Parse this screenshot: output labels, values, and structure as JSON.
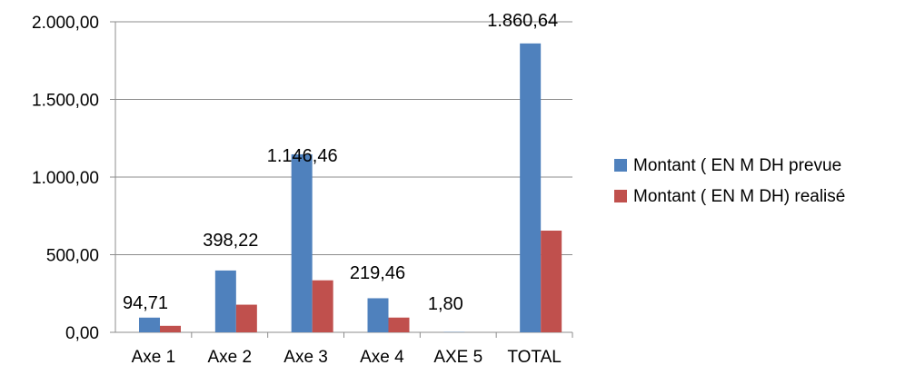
{
  "chart_data": {
    "type": "bar",
    "title": "",
    "xlabel": "",
    "ylabel": "",
    "categories": [
      "Axe 1",
      "Axe 2",
      "Axe 3",
      "Axe 4",
      "AXE 5",
      "TOTAL"
    ],
    "series": [
      {
        "name": "Montant ( EN M DH prevue",
        "color": "#4f81bd",
        "values": [
          94.71,
          398.22,
          1146.46,
          219.46,
          1.8,
          1860.64
        ]
      },
      {
        "name": "Montant ( EN M DH) realisé",
        "color": "#c0504d",
        "values": [
          42,
          178,
          335,
          95,
          0,
          655
        ]
      }
    ],
    "data_labels": [
      "94,71",
      "398,22",
      "1.146,46",
      "219,46",
      "1,80",
      "1.860,64"
    ],
    "y_ticks": [
      "0,00",
      "500,00",
      "1.000,00",
      "1.500,00",
      "2.000,00"
    ],
    "ylim": [
      0,
      2000
    ],
    "y_step": 500,
    "grid": true,
    "legend_position": "right"
  }
}
